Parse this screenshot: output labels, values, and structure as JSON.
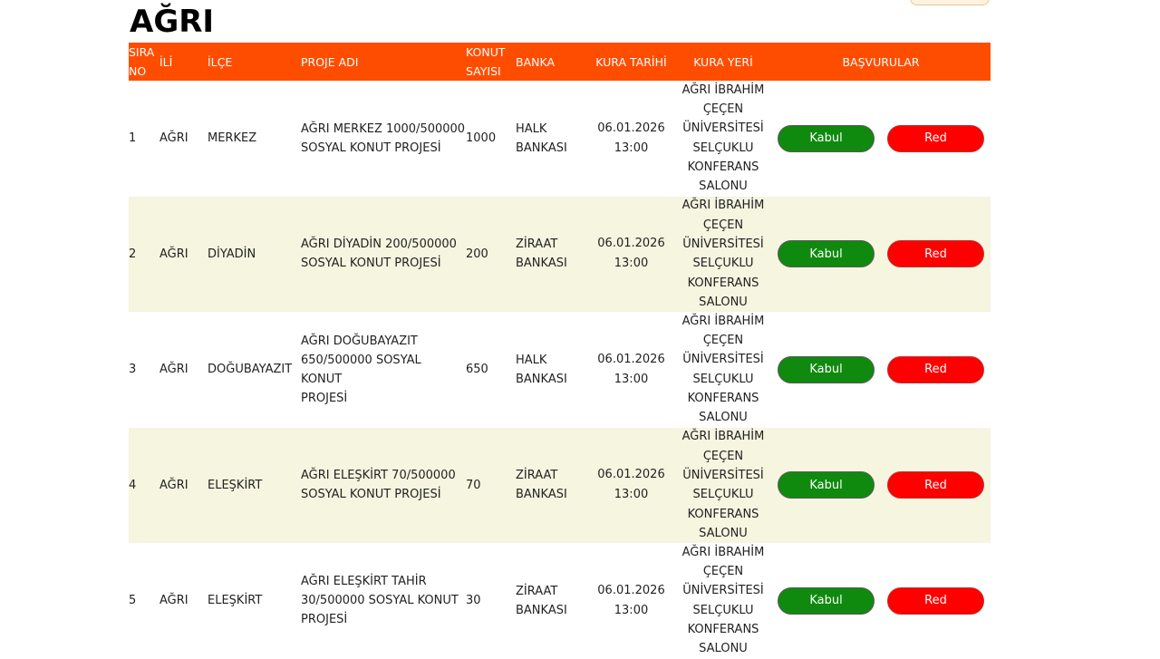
{
  "page": {
    "title": "AĞRI"
  },
  "table": {
    "headers": {
      "sira": [
        "SIRA",
        "NO"
      ],
      "ili": "İLİ",
      "ilce": "İLÇE",
      "proje": "PROJE ADI",
      "konut": [
        "KONUT",
        "SAYISI"
      ],
      "banka": "BANKA",
      "tarih": "KURA TARİHİ",
      "yer": "KURA YERİ",
      "basvurular": "BAŞVURULAR"
    },
    "rows": [
      {
        "sira": "1",
        "ili": "AĞRI",
        "ilce": "MERKEZ",
        "proje": [
          "AĞRI MERKEZ 1000/500000",
          "SOSYAL KONUT PROJESİ"
        ],
        "konut": "1000",
        "banka": [
          "HALK",
          "BANKASI"
        ],
        "tarih": [
          "06.01.2026",
          "13:00"
        ],
        "yer": [
          "AĞRI İBRAHİM",
          "ÇEÇEN",
          "ÜNİVERSİTESİ",
          "SELÇUKLU",
          "KONFERANS",
          "SALONU"
        ],
        "kabul": "Kabul",
        "red": "Red"
      },
      {
        "sira": "2",
        "ili": "AĞRI",
        "ilce": "DİYADİN",
        "proje": [
          "AĞRI DİYADİN 200/500000",
          "SOSYAL KONUT PROJESİ"
        ],
        "konut": "200",
        "banka": [
          "ZİRAAT",
          "BANKASI"
        ],
        "tarih": [
          "06.01.2026",
          "13:00"
        ],
        "yer": [
          "AĞRI İBRAHİM",
          "ÇEÇEN",
          "ÜNİVERSİTESİ",
          "SELÇUKLU",
          "KONFERANS",
          "SALONU"
        ],
        "kabul": "Kabul",
        "red": "Red"
      },
      {
        "sira": "3",
        "ili": "AĞRI",
        "ilce": "DOĞUBAYAZIT",
        "proje": [
          "AĞRI DOĞUBAYAZIT",
          "650/500000 SOSYAL KONUT",
          "PROJESİ"
        ],
        "konut": "650",
        "banka": [
          "HALK",
          "BANKASI"
        ],
        "tarih": [
          "06.01.2026",
          "13:00"
        ],
        "yer": [
          "AĞRI İBRAHİM",
          "ÇEÇEN",
          "ÜNİVERSİTESİ",
          "SELÇUKLU",
          "KONFERANS",
          "SALONU"
        ],
        "kabul": "Kabul",
        "red": "Red"
      },
      {
        "sira": "4",
        "ili": "AĞRI",
        "ilce": "ELEŞKİRT",
        "proje": [
          "AĞRI ELEŞKİRT 70/500000",
          "SOSYAL KONUT PROJESİ"
        ],
        "konut": "70",
        "banka": [
          "ZİRAAT",
          "BANKASI"
        ],
        "tarih": [
          "06.01.2026",
          "13:00"
        ],
        "yer": [
          "AĞRI İBRAHİM",
          "ÇEÇEN",
          "ÜNİVERSİTESİ",
          "SELÇUKLU",
          "KONFERANS",
          "SALONU"
        ],
        "kabul": "Kabul",
        "red": "Red"
      },
      {
        "sira": "5",
        "ili": "AĞRI",
        "ilce": "ELEŞKİRT",
        "proje": [
          "AĞRI ELEŞKİRT TAHİR",
          "30/500000 SOSYAL KONUT",
          "PROJESİ"
        ],
        "konut": "30",
        "banka": [
          "ZİRAAT",
          "BANKASI"
        ],
        "tarih": [
          "06.01.2026",
          "13:00"
        ],
        "yer": [
          "AĞRI İBRAHİM",
          "ÇEÇEN",
          "ÜNİVERSİTESİ",
          "SELÇUKLU",
          "KONFERANS",
          "SALONU"
        ],
        "kabul": "Kabul",
        "red": "Red"
      }
    ]
  },
  "colors": {
    "header_bg": "#ff4d00",
    "alt_row_bg": "#f5f5e0",
    "kabul_bg": "#0f8a0f",
    "red_bg": "#ff0000"
  }
}
